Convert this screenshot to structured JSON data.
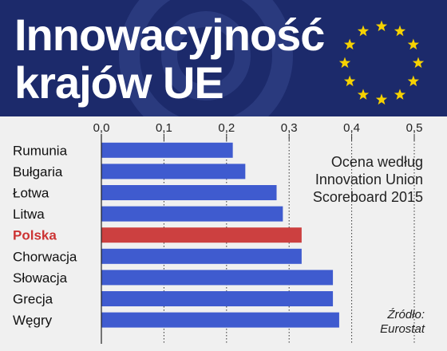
{
  "header": {
    "title_line1": "Innowacyjność",
    "title_line2": "krajów UE",
    "background_color": "#1c2a6b",
    "flag_icon": "eu-flag-stars-icon",
    "star_color": "#f6d200"
  },
  "note": "Ocena według\nInnovation Union\nScoreboard 2015",
  "source": "Źródło:\nEurostat",
  "colors": {
    "bar": "#3f5bcf",
    "highlight": "#cc4040",
    "highlight_label": "#cc3333",
    "label": "#111111"
  },
  "chart_data": {
    "type": "bar",
    "orientation": "horizontal",
    "title": "Innowacyjność krajów UE",
    "categories": [
      "Rumunia",
      "Bułgaria",
      "Łotwa",
      "Litwa",
      "Polska",
      "Chorwacja",
      "Słowacja",
      "Grecja",
      "Węgry"
    ],
    "values": [
      0.21,
      0.23,
      0.28,
      0.29,
      0.32,
      0.32,
      0.37,
      0.37,
      0.38
    ],
    "highlight": "Polska",
    "xlim": [
      0,
      0.5
    ],
    "ticks": [
      "0,0",
      "0,1",
      "0,2",
      "0,3",
      "0,4",
      "0,5"
    ],
    "tick_values": [
      0,
      0.1,
      0.2,
      0.3,
      0.4,
      0.5
    ],
    "grid": "vertical dotted"
  }
}
